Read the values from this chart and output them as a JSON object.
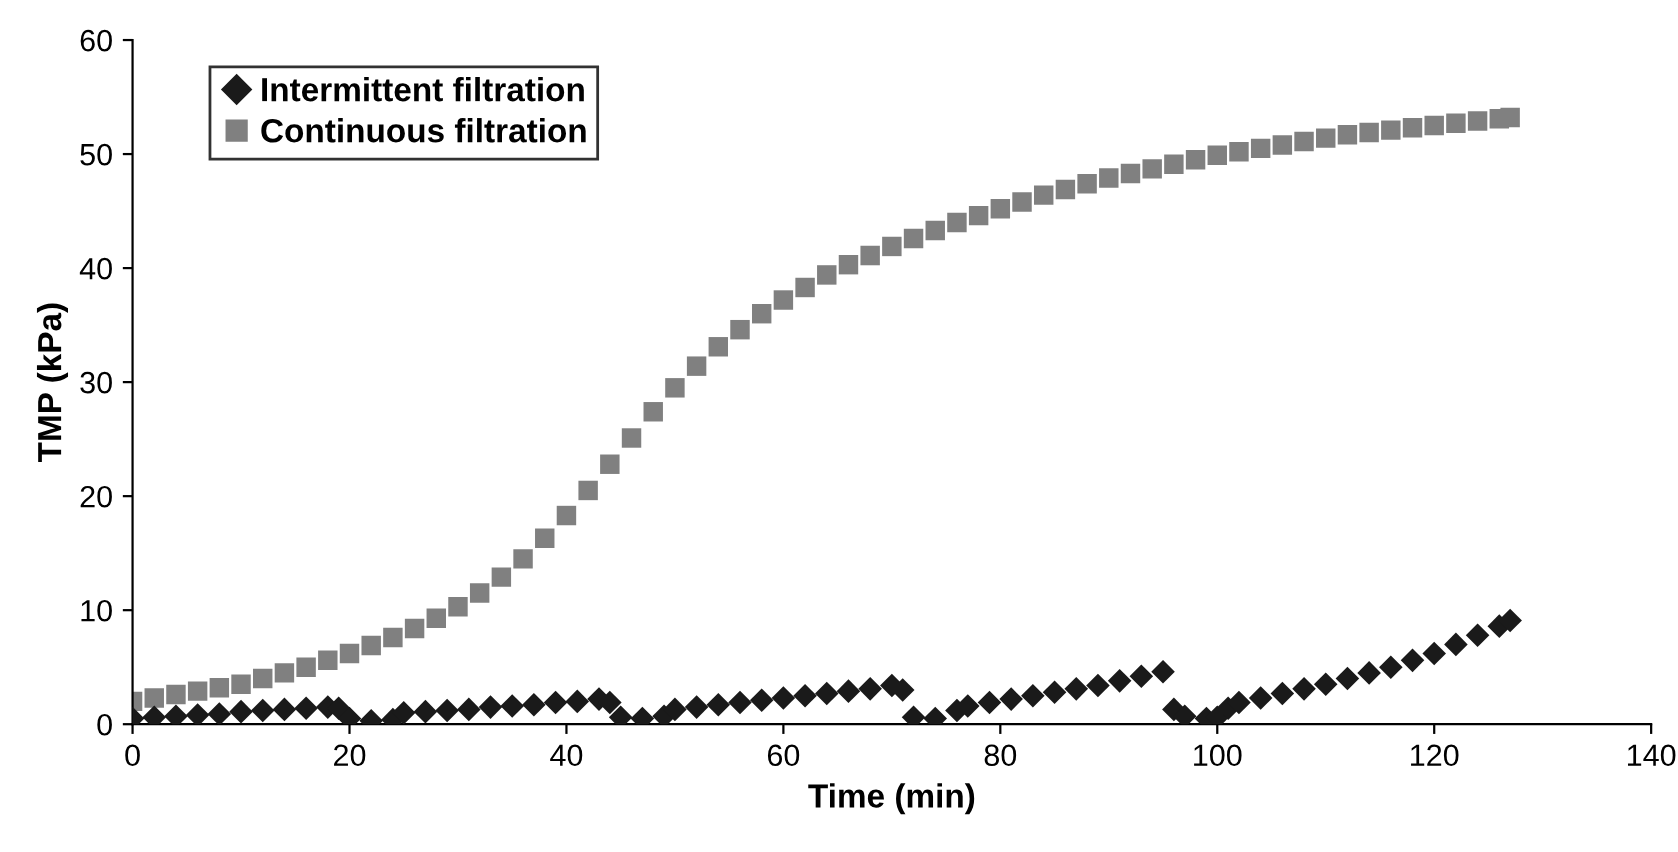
{
  "chart_data": {
    "type": "scatter",
    "xlabel": "Time (min)",
    "ylabel": "TMP (kPa)",
    "xlim": [
      0,
      140
    ],
    "xticks": [
      0,
      20,
      40,
      60,
      80,
      100,
      120,
      140
    ],
    "ylim": [
      0,
      60
    ],
    "yticks": [
      0,
      10,
      20,
      30,
      40,
      50,
      60
    ],
    "grid": false,
    "legend": "top left",
    "series": [
      {
        "name": "Intermittent filtration",
        "color": "#1a1a1a",
        "marker": "diamond",
        "x": [
          0,
          2,
          4,
          6,
          8,
          10,
          12,
          14,
          16,
          18,
          19,
          20,
          22,
          24,
          25,
          27,
          29,
          31,
          33,
          35,
          37,
          39,
          41,
          43,
          44,
          45,
          47,
          49,
          50,
          52,
          54,
          56,
          58,
          60,
          62,
          64,
          66,
          68,
          70,
          71,
          72,
          74,
          76,
          77,
          79,
          81,
          83,
          85,
          87,
          89,
          91,
          93,
          95,
          96,
          97,
          99,
          100,
          101,
          102,
          104,
          106,
          108,
          110,
          112,
          114,
          116,
          118,
          120,
          122,
          124,
          126,
          127
        ],
        "values": [
          0.5,
          0.6,
          0.7,
          0.8,
          0.9,
          1.1,
          1.2,
          1.3,
          1.4,
          1.5,
          1.4,
          0.5,
          0.3,
          0.4,
          1.0,
          1.1,
          1.2,
          1.3,
          1.5,
          1.6,
          1.7,
          1.9,
          2.0,
          2.2,
          1.9,
          0.6,
          0.5,
          0.7,
          1.3,
          1.5,
          1.7,
          1.9,
          2.1,
          2.3,
          2.5,
          2.7,
          2.9,
          3.1,
          3.4,
          3.0,
          0.6,
          0.5,
          1.2,
          1.6,
          1.9,
          2.2,
          2.5,
          2.8,
          3.1,
          3.4,
          3.8,
          4.2,
          4.6,
          1.3,
          0.7,
          0.5,
          0.6,
          1.4,
          1.9,
          2.3,
          2.7,
          3.1,
          3.5,
          4.0,
          4.5,
          5.0,
          5.6,
          6.2,
          7.0,
          7.8,
          8.6,
          9.1
        ]
      },
      {
        "name": "Continuous filtration",
        "color": "#808080",
        "marker": "square",
        "x": [
          0,
          2,
          4,
          6,
          8,
          10,
          12,
          14,
          16,
          18,
          20,
          22,
          24,
          26,
          28,
          30,
          32,
          34,
          36,
          38,
          40,
          42,
          44,
          46,
          48,
          50,
          52,
          54,
          56,
          58,
          60,
          62,
          64,
          66,
          68,
          70,
          72,
          74,
          76,
          78,
          80,
          82,
          84,
          86,
          88,
          90,
          92,
          94,
          96,
          98,
          100,
          102,
          104,
          106,
          108,
          110,
          112,
          114,
          116,
          118,
          120,
          122,
          124,
          126,
          127
        ],
        "values": [
          2.0,
          2.3,
          2.6,
          2.9,
          3.2,
          3.5,
          4.0,
          4.5,
          5.0,
          5.6,
          6.2,
          6.9,
          7.6,
          8.4,
          9.3,
          10.3,
          11.5,
          12.9,
          14.5,
          16.3,
          18.3,
          20.5,
          22.8,
          25.1,
          27.4,
          29.5,
          31.4,
          33.1,
          34.6,
          36.0,
          37.2,
          38.3,
          39.4,
          40.3,
          41.1,
          41.9,
          42.6,
          43.3,
          44.0,
          44.6,
          45.2,
          45.8,
          46.4,
          46.9,
          47.4,
          47.9,
          48.3,
          48.7,
          49.1,
          49.5,
          49.9,
          50.2,
          50.5,
          50.8,
          51.1,
          51.4,
          51.7,
          51.9,
          52.1,
          52.3,
          52.5,
          52.7,
          52.9,
          53.1,
          53.2
        ]
      }
    ]
  }
}
